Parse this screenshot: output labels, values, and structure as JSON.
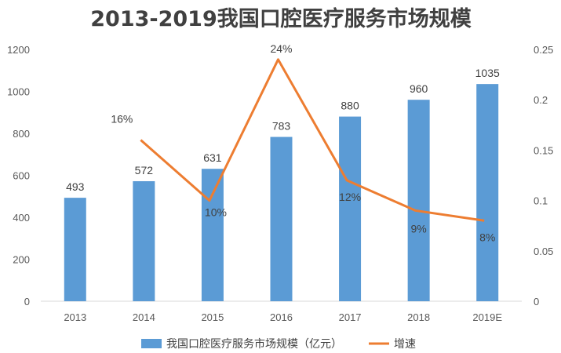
{
  "chart_data": {
    "type": "bar+line",
    "title": "2013-2019我国口腔医疗服务市场规模",
    "categories": [
      "2013",
      "2014",
      "2015",
      "2016",
      "2017",
      "2018",
      "2019E"
    ],
    "series": [
      {
        "name": "我国口腔医疗服务市场规模（亿元）",
        "type": "bar",
        "axis": "left",
        "color": "#5B9BD5",
        "values": [
          493,
          572,
          631,
          783,
          880,
          960,
          1035
        ],
        "labels": [
          "493",
          "572",
          "631",
          "783",
          "880",
          "960",
          "1035"
        ]
      },
      {
        "name": "增速",
        "type": "line",
        "axis": "right",
        "color": "#ED7D31",
        "values": [
          null,
          0.16,
          0.1,
          0.24,
          0.12,
          0.09,
          0.08
        ],
        "labels": [
          "",
          "16%",
          "10%",
          "24%",
          "12%",
          "9%",
          "8%"
        ]
      }
    ],
    "y_left": {
      "min": 0,
      "max": 1200,
      "ticks": [
        "0",
        "200",
        "400",
        "600",
        "800",
        "1000",
        "1200"
      ]
    },
    "y_right": {
      "min": 0,
      "max": 0.25,
      "ticks": [
        "0",
        "0.05",
        "0.1",
        "0.15",
        "0.2",
        "0.25"
      ]
    },
    "grid": false,
    "legend": "bottom"
  }
}
